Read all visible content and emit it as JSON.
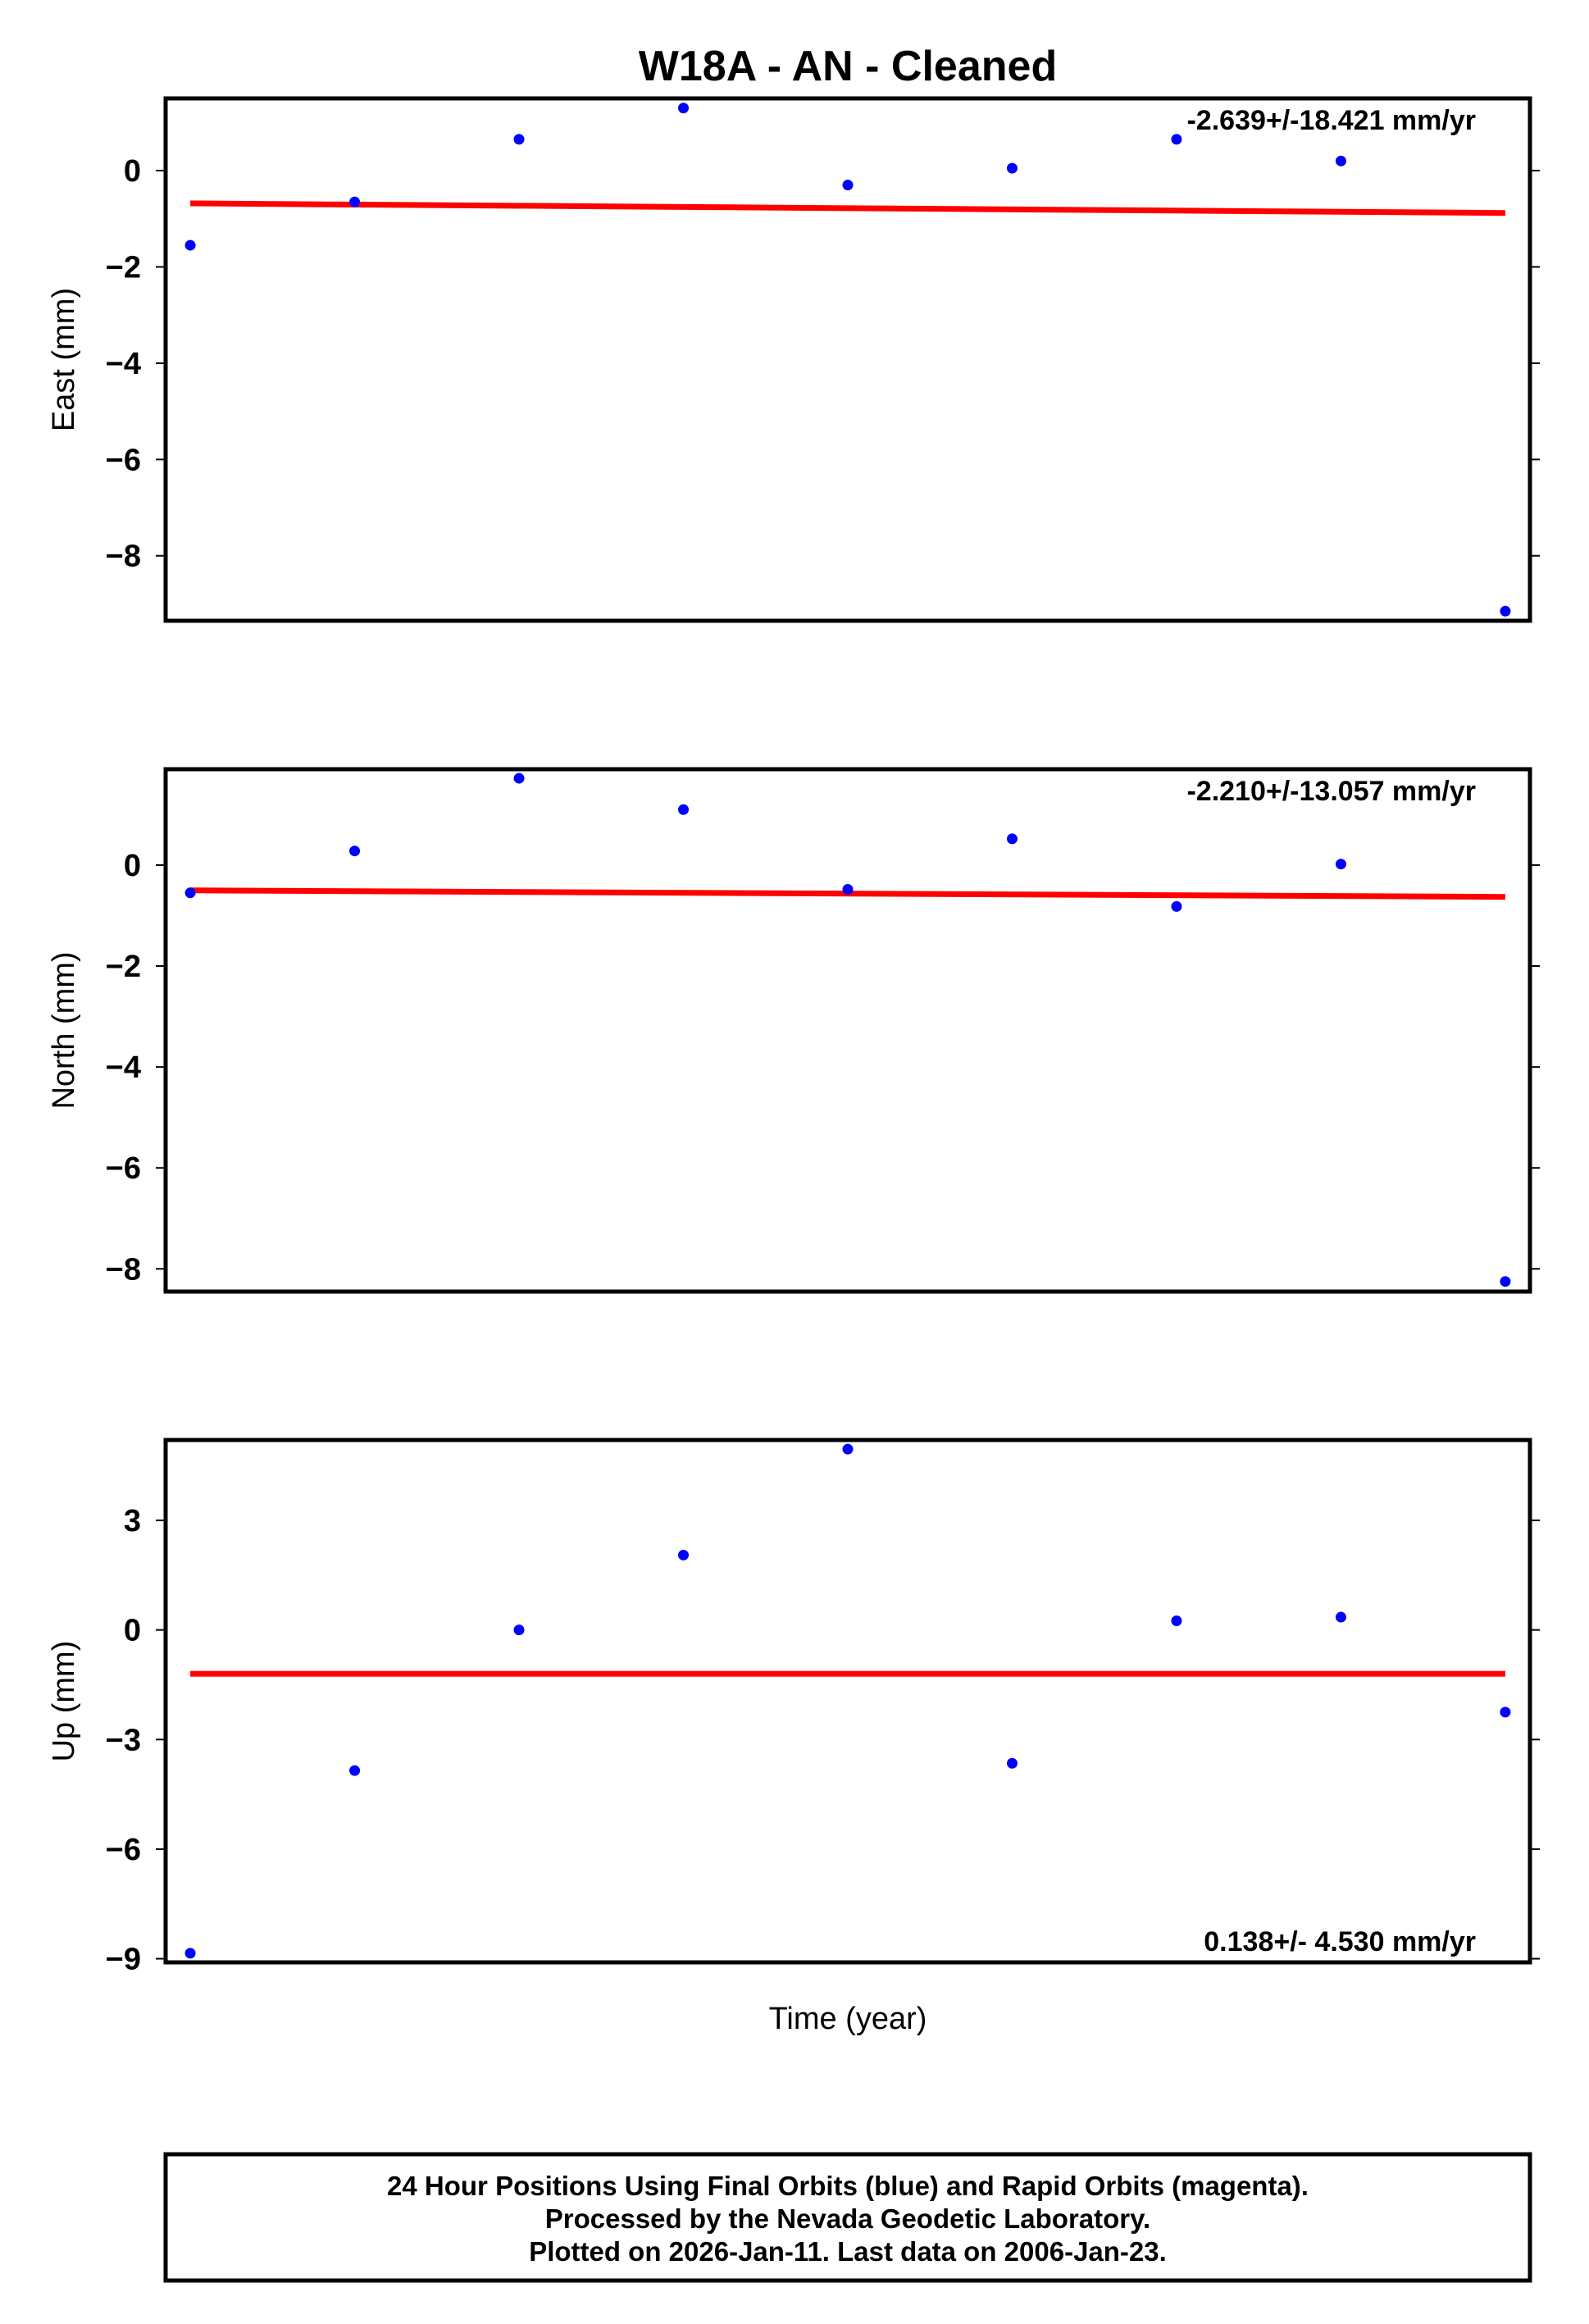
{
  "title": "W18A  - AN - Cleaned",
  "xlabel": "Time (year)",
  "footer": {
    "lines": [
      "24 Hour Positions Using Final Orbits (blue) and Rapid Orbits (magenta).",
      "Processed by the Nevada Geodetic Laboratory.",
      "Plotted on 2026-Jan-11. Last data on 2006-Jan-23."
    ]
  },
  "colors": {
    "points": "#0000ff",
    "fit": "#ff0000",
    "frame": "#000000"
  },
  "chart_data": [
    {
      "type": "scatter",
      "ylabel": "East (mm)",
      "rate_label": "-2.639+/-18.421 mm/yr",
      "rate_position": "top-right",
      "ylim": [
        -9.35,
        1.5
      ],
      "xlim": [
        -0.15,
        8.15
      ],
      "yticks": [
        0,
        -2,
        -4,
        -6,
        -8
      ],
      "ytick_labels": [
        "0",
        "−2",
        "−4",
        "−6",
        "−8"
      ],
      "x": [
        0,
        1,
        2,
        3,
        4,
        5,
        6,
        7,
        8
      ],
      "y": [
        -1.55,
        -0.65,
        0.65,
        1.3,
        -0.3,
        0.05,
        0.65,
        0.2,
        -9.15
      ],
      "fit": {
        "y_start": -0.68,
        "y_end": -0.88
      }
    },
    {
      "type": "scatter",
      "ylabel": "North (mm)",
      "rate_label": "-2.210+/-13.057 mm/yr",
      "rate_position": "top-right",
      "ylim": [
        -8.45,
        1.9
      ],
      "xlim": [
        -0.15,
        8.15
      ],
      "yticks": [
        0,
        -2,
        -4,
        -6,
        -8
      ],
      "ytick_labels": [
        "0",
        "−2",
        "−4",
        "−6",
        "−8"
      ],
      "x": [
        0,
        1,
        2,
        3,
        4,
        5,
        6,
        7,
        8
      ],
      "y": [
        -0.55,
        0.28,
        1.72,
        1.1,
        -0.48,
        0.52,
        -0.82,
        0.02,
        -8.25
      ],
      "fit": {
        "y_start": -0.5,
        "y_end": -0.63
      }
    },
    {
      "type": "scatter",
      "ylabel": "Up (mm)",
      "rate_label": "0.138+/- 4.530 mm/yr",
      "rate_position": "bottom-right",
      "ylim": [
        -9.1,
        5.2
      ],
      "xlim": [
        -0.15,
        8.15
      ],
      "yticks": [
        3,
        0,
        -3,
        -6,
        -9
      ],
      "ytick_labels": [
        "3",
        "0",
        "−3",
        "−6",
        "−9"
      ],
      "x": [
        0,
        1,
        2,
        3,
        4,
        5,
        6,
        7,
        8
      ],
      "y": [
        -8.85,
        -3.85,
        0.0,
        2.05,
        4.95,
        -3.65,
        0.25,
        0.35,
        -2.25
      ],
      "fit": {
        "y_start": -1.2,
        "y_end": -1.2
      }
    }
  ]
}
